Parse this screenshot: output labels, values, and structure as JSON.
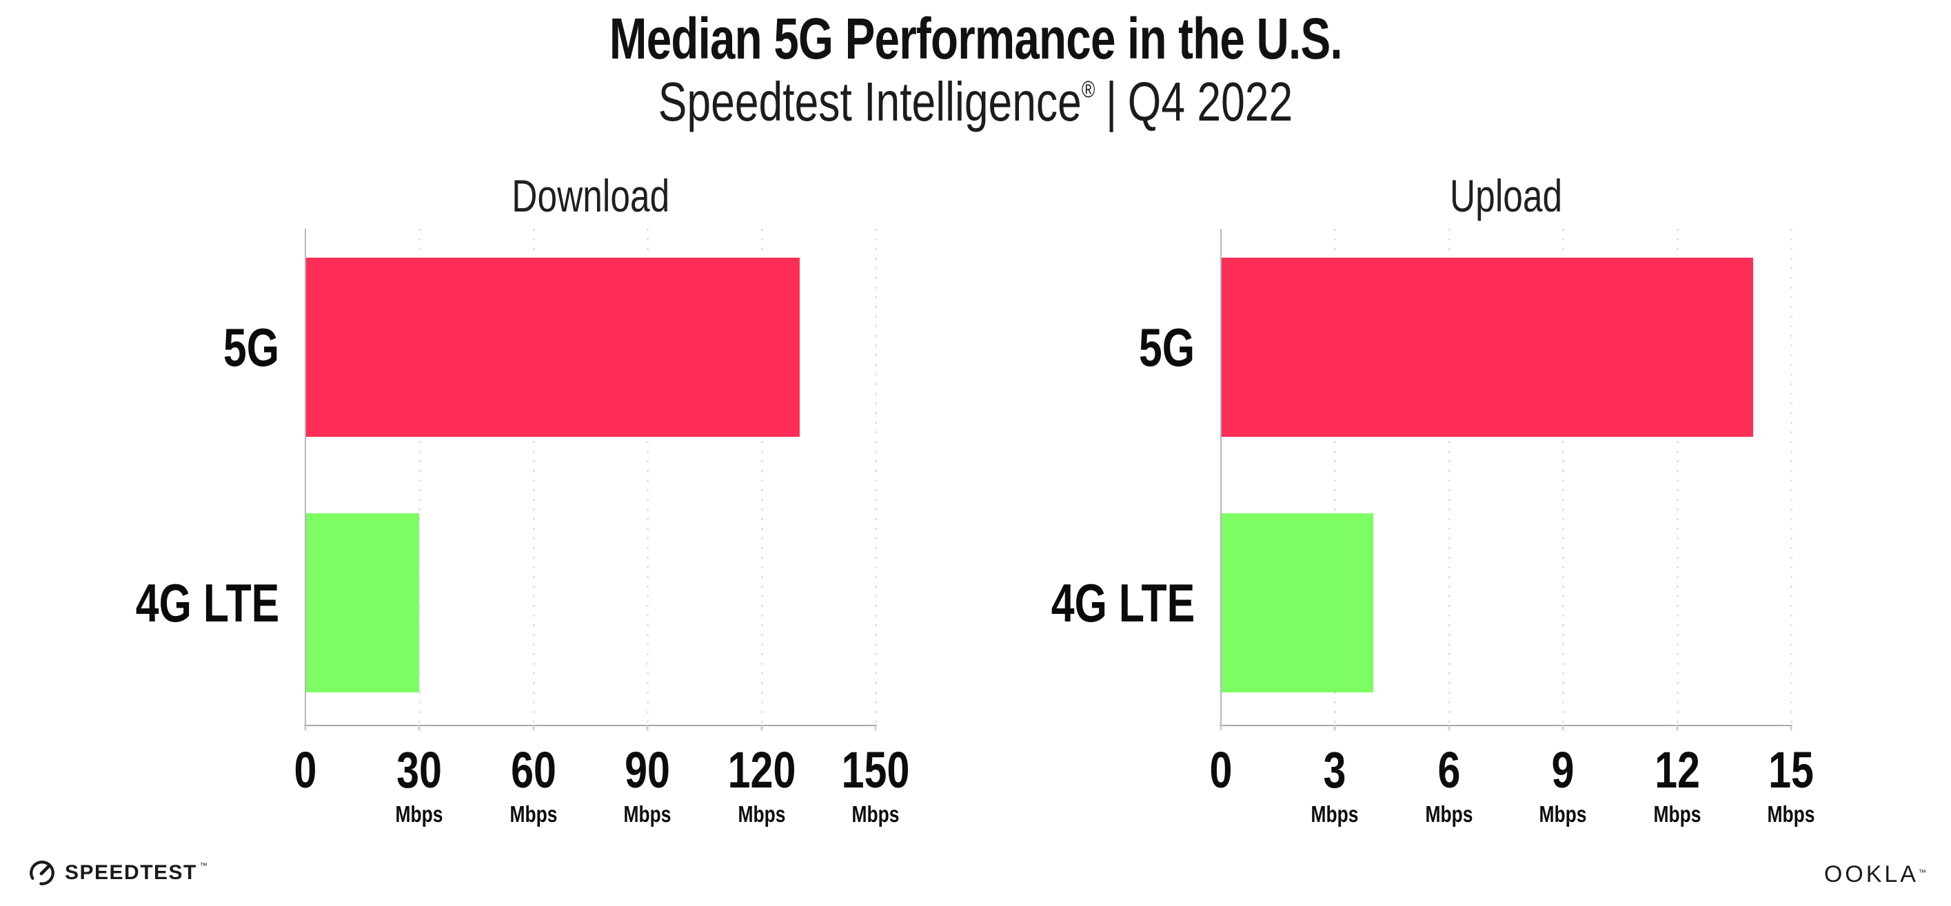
{
  "page": {
    "background": "#ffffff"
  },
  "header": {
    "title": "Median 5G Performance in the U.S.",
    "subtitle": {
      "brand": "Speedtest Intelligence",
      "registered_mark": "®",
      "separator": "|",
      "period": "Q4 2022"
    }
  },
  "colors": {
    "bar_5g": "#FF2E56",
    "bar_4g_lte": "#7DFC64",
    "gridline": "#E1E1EB",
    "axis_line": "#A7A7B1",
    "text": "#111111"
  },
  "chart_data": [
    {
      "type": "bar",
      "orientation": "horizontal",
      "title": "Download",
      "categories": [
        "5G",
        "4G LTE"
      ],
      "values": [
        130,
        30
      ],
      "unit": "Mbps",
      "xlim": [
        0,
        150
      ],
      "xticks": [
        {
          "label": "0",
          "unit": ""
        },
        {
          "label": "30",
          "unit": "Mbps"
        },
        {
          "label": "60",
          "unit": "Mbps"
        },
        {
          "label": "90",
          "unit": "Mbps"
        },
        {
          "label": "120",
          "unit": "Mbps"
        },
        {
          "label": "150",
          "unit": "Mbps"
        }
      ],
      "grid": "vertical-dotted",
      "legend": "none"
    },
    {
      "type": "bar",
      "orientation": "horizontal",
      "title": "Upload",
      "categories": [
        "5G",
        "4G LTE"
      ],
      "values": [
        14,
        4
      ],
      "unit": "Mbps",
      "xlim": [
        0,
        15
      ],
      "xticks": [
        {
          "label": "0",
          "unit": ""
        },
        {
          "label": "3",
          "unit": "Mbps"
        },
        {
          "label": "6",
          "unit": "Mbps"
        },
        {
          "label": "9",
          "unit": "Mbps"
        },
        {
          "label": "12",
          "unit": "Mbps"
        },
        {
          "label": "15",
          "unit": "Mbps"
        }
      ],
      "grid": "vertical-dotted",
      "legend": "none"
    }
  ],
  "footer": {
    "speedtest": {
      "label": "SPEEDTEST",
      "trademark": "™"
    },
    "ookla": {
      "label": "OOKLA",
      "trademark": "™"
    }
  }
}
